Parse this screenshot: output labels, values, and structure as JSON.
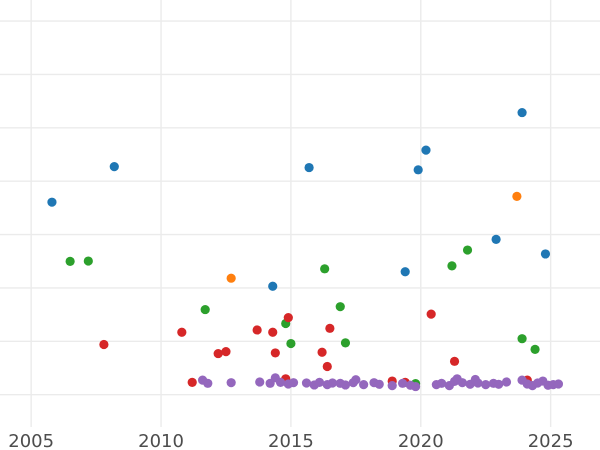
{
  "chart_data": {
    "type": "scatter",
    "title": "",
    "xlabel": "",
    "ylabel": "",
    "xlim": [
      2003.8,
      2026.9
    ],
    "ylim": [
      0,
      13.2
    ],
    "grid": true,
    "legend": "none",
    "x_ticks": [
      2005,
      2010,
      2015,
      2020,
      2025
    ],
    "y_gridlines": [
      1,
      2.65,
      4.3,
      5.95,
      7.6,
      9.25,
      10.9,
      12.55,
      14.2
    ],
    "series": [
      {
        "color": "#1f77b4",
        "points": [
          [
            2005.8,
            6.95
          ],
          [
            2008.2,
            8.05
          ],
          [
            2014.3,
            4.35
          ],
          [
            2015.7,
            8.02
          ],
          [
            2019.4,
            4.8
          ],
          [
            2019.9,
            7.95
          ],
          [
            2020.2,
            8.56
          ],
          [
            2022.9,
            5.8
          ],
          [
            2023.9,
            9.72
          ],
          [
            2024.8,
            5.35
          ]
        ]
      },
      {
        "color": "#ff7f0e",
        "points": [
          [
            2012.7,
            4.6
          ],
          [
            2023.7,
            7.13
          ]
        ]
      },
      {
        "color": "#2ca02c",
        "points": [
          [
            2006.5,
            5.12
          ],
          [
            2007.2,
            5.13
          ],
          [
            2011.7,
            3.63
          ],
          [
            2014.8,
            3.2
          ],
          [
            2015.0,
            2.58
          ],
          [
            2016.3,
            4.89
          ],
          [
            2016.9,
            3.72
          ],
          [
            2017.1,
            2.6
          ],
          [
            2019.8,
            1.34
          ],
          [
            2021.2,
            4.98
          ],
          [
            2021.8,
            5.47
          ],
          [
            2023.9,
            2.73
          ],
          [
            2024.4,
            2.4
          ]
        ]
      },
      {
        "color": "#d62728",
        "points": [
          [
            2007.8,
            2.55
          ],
          [
            2010.8,
            2.93
          ],
          [
            2011.2,
            1.38
          ],
          [
            2012.2,
            2.27
          ],
          [
            2012.5,
            2.33
          ],
          [
            2013.7,
            3.0
          ],
          [
            2014.3,
            2.93
          ],
          [
            2014.4,
            2.29
          ],
          [
            2014.8,
            1.49
          ],
          [
            2014.9,
            3.38
          ],
          [
            2016.2,
            2.31
          ],
          [
            2016.4,
            1.87
          ],
          [
            2016.5,
            3.05
          ],
          [
            2018.9,
            1.42
          ],
          [
            2019.4,
            1.38
          ],
          [
            2020.4,
            3.49
          ],
          [
            2021.3,
            2.03
          ],
          [
            2024.1,
            1.45
          ]
        ]
      },
      {
        "color": "#9467bd",
        "points": [
          [
            2011.6,
            1.45
          ],
          [
            2011.8,
            1.35
          ],
          [
            2012.7,
            1.37
          ],
          [
            2013.8,
            1.39
          ],
          [
            2014.2,
            1.35
          ],
          [
            2014.4,
            1.52
          ],
          [
            2014.6,
            1.38
          ],
          [
            2014.9,
            1.33
          ],
          [
            2015.1,
            1.37
          ],
          [
            2015.6,
            1.36
          ],
          [
            2015.9,
            1.3
          ],
          [
            2016.1,
            1.38
          ],
          [
            2016.4,
            1.31
          ],
          [
            2016.6,
            1.36
          ],
          [
            2016.9,
            1.35
          ],
          [
            2017.1,
            1.3
          ],
          [
            2017.4,
            1.37
          ],
          [
            2017.5,
            1.46
          ],
          [
            2017.8,
            1.31
          ],
          [
            2018.2,
            1.37
          ],
          [
            2018.4,
            1.32
          ],
          [
            2018.9,
            1.28
          ],
          [
            2019.3,
            1.35
          ],
          [
            2019.6,
            1.29
          ],
          [
            2019.8,
            1.25
          ],
          [
            2020.6,
            1.31
          ],
          [
            2020.8,
            1.35
          ],
          [
            2021.1,
            1.28
          ],
          [
            2021.3,
            1.41
          ],
          [
            2021.4,
            1.49
          ],
          [
            2021.6,
            1.37
          ],
          [
            2021.9,
            1.32
          ],
          [
            2022.1,
            1.47
          ],
          [
            2022.2,
            1.36
          ],
          [
            2022.5,
            1.31
          ],
          [
            2022.8,
            1.35
          ],
          [
            2023.0,
            1.32
          ],
          [
            2023.3,
            1.39
          ],
          [
            2023.9,
            1.45
          ],
          [
            2024.1,
            1.33
          ],
          [
            2024.3,
            1.28
          ],
          [
            2024.5,
            1.36
          ],
          [
            2024.7,
            1.42
          ],
          [
            2024.9,
            1.29
          ],
          [
            2025.1,
            1.31
          ],
          [
            2025.3,
            1.33
          ]
        ]
      }
    ]
  }
}
